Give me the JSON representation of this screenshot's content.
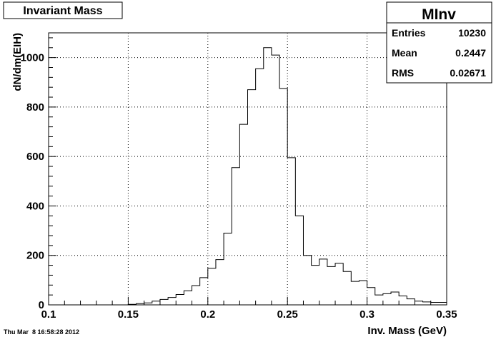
{
  "chart_data": {
    "type": "bar",
    "title": "Invariant Mass",
    "xlabel": "Inv. Mass (GeV)",
    "ylabel": "dN/dm(EIH)",
    "xlim": [
      0.1,
      0.35
    ],
    "ylim": [
      0,
      1100
    ],
    "bin_width": 0.005,
    "x_ticks": [
      "0.1",
      "0.15",
      "0.2",
      "0.25",
      "0.3",
      "0.35"
    ],
    "x_tick_values": [
      0.1,
      0.15,
      0.2,
      0.25,
      0.3,
      0.35
    ],
    "y_ticks": [
      "0",
      "200",
      "400",
      "600",
      "800",
      "1000"
    ],
    "y_tick_values": [
      0,
      200,
      400,
      600,
      800,
      1000
    ],
    "grid": true,
    "x": [
      0.1025,
      0.1075,
      0.1125,
      0.1175,
      0.1225,
      0.1275,
      0.1325,
      0.1375,
      0.1425,
      0.1475,
      0.1525,
      0.1575,
      0.1625,
      0.1675,
      0.1725,
      0.1775,
      0.1825,
      0.1875,
      0.1925,
      0.1975,
      0.2025,
      0.2075,
      0.2125,
      0.2175,
      0.2225,
      0.2275,
      0.2325,
      0.2375,
      0.2425,
      0.2475,
      0.2525,
      0.2575,
      0.2625,
      0.2675,
      0.2725,
      0.2775,
      0.2825,
      0.2875,
      0.2925,
      0.2975,
      0.3025,
      0.3075,
      0.3125,
      0.3175,
      0.3225,
      0.3275,
      0.3325,
      0.3375,
      0.3425,
      0.3475
    ],
    "values": [
      0,
      0,
      0,
      0,
      0,
      0,
      0,
      0,
      0,
      0,
      2,
      5,
      8,
      15,
      22,
      30,
      42,
      57,
      78,
      110,
      148,
      183,
      290,
      555,
      730,
      870,
      955,
      1040,
      1010,
      875,
      595,
      360,
      200,
      160,
      185,
      155,
      168,
      135,
      95,
      98,
      70,
      40,
      45,
      52,
      36,
      24,
      15,
      12,
      10,
      10
    ],
    "stats": {
      "name": "MInv",
      "entries_label": "Entries",
      "entries": "10230",
      "mean_label": "Mean",
      "mean": "0.2447",
      "rms_label": "RMS",
      "rms": "0.02671"
    },
    "timestamp": "Thu Mar  8 16:58:28 2012"
  }
}
